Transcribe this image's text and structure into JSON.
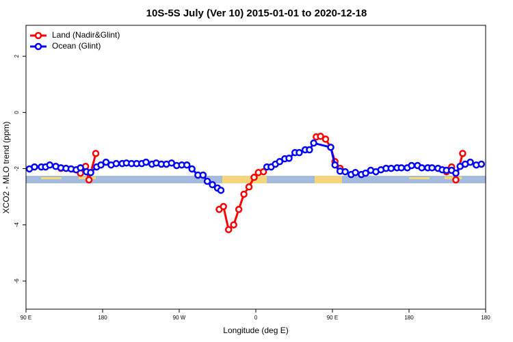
{
  "chart_data": {
    "type": "line",
    "title": "10S-5S July (Ver 10)   2015-01-01 to 2020-12-18",
    "x_label": "Longitude (deg E)",
    "y_label": "XCO2 - MLO trend (ppm)",
    "xlim": [
      90,
      630
    ],
    "ylim": [
      -7,
      3.1
    ],
    "xticks": [
      {
        "value": 90,
        "label": "90 E"
      },
      180,
      {
        "value": 270,
        "label": "90 W"
      },
      {
        "value": 360,
        "label": "0"
      },
      {
        "value": 450,
        "label": "90 E"
      },
      {
        "value": 540,
        "label": "180"
      },
      {
        "value": 630,
        "label": "180"
      }
    ],
    "yticks": [
      2,
      0,
      -2,
      -4,
      -6
    ],
    "legend": "top-left",
    "series": [
      {
        "name": "Land (Nadir&Glint)",
        "color": "#ff0000",
        "x": [
          131,
          154,
          160,
          164,
          172,
          null,
          317,
          322,
          328,
          334,
          340,
          346,
          352,
          358,
          363,
          369,
          null,
          431,
          436,
          442,
          448,
          453,
          459,
          null,
          562,
          584,
          590,
          595,
          603
        ],
        "values": [
          -1.99,
          -2.16,
          -1.92,
          -2.4,
          -1.46,
          null,
          -3.45,
          -3.35,
          -4.17,
          -4.0,
          -3.45,
          -2.91,
          -2.65,
          -2.31,
          -2.14,
          -2.11,
          null,
          -0.87,
          -0.85,
          -0.95,
          -1.24,
          -1.75,
          -1.99,
          null,
          -1.97,
          -2.11,
          -1.94,
          -2.4,
          -1.46
        ]
      },
      {
        "name": "Ocean (Glint)",
        "color": "#0000ff",
        "x": [
          94,
          100,
          108,
          113,
          118,
          125,
          131,
          137,
          143,
          149,
          154,
          161,
          166,
          173,
          178,
          184,
          190,
          196,
          203,
          208,
          214,
          220,
          226,
          231,
          238,
          243,
          249,
          255,
          261,
          267,
          273,
          279,
          285,
          292,
          298,
          303,
          309,
          315,
          319,
          null,
          373,
          378,
          383,
          388,
          394,
          399,
          406,
          411,
          418,
          423,
          428,
          448,
          453,
          459,
          465,
          472,
          477,
          484,
          489,
          495,
          501,
          507,
          513,
          519,
          526,
          531,
          538,
          543,
          550,
          555,
          562,
          567,
          574,
          579,
          584,
          590,
          595,
          600,
          606,
          612,
          619,
          625
        ],
        "values": [
          -2.01,
          -1.94,
          -1.94,
          -1.94,
          -1.87,
          -1.92,
          -1.97,
          -1.99,
          -2.01,
          -2.04,
          -1.97,
          -2.11,
          -2.14,
          -1.94,
          -1.87,
          -1.77,
          -1.87,
          -1.82,
          -1.82,
          -1.8,
          -1.82,
          -1.82,
          -1.82,
          -1.77,
          -1.84,
          -1.8,
          -1.84,
          -1.84,
          -1.8,
          -1.89,
          -1.87,
          -1.87,
          -2.01,
          -2.23,
          -2.23,
          -2.45,
          -2.57,
          -2.69,
          -2.77,
          null,
          -1.94,
          -1.94,
          -1.84,
          -1.75,
          -1.65,
          -1.63,
          -1.43,
          -1.43,
          -1.33,
          -1.33,
          -1.09,
          -1.24,
          -1.87,
          -2.09,
          -2.11,
          -2.21,
          -2.14,
          -2.21,
          -2.16,
          -2.06,
          -2.11,
          -2.04,
          -1.99,
          -1.99,
          -1.97,
          -1.97,
          -1.97,
          -1.89,
          -1.89,
          -1.97,
          -1.97,
          -1.97,
          -1.99,
          -2.04,
          -2.06,
          -2.06,
          -2.16,
          -1.92,
          -1.84,
          -1.77,
          -1.87,
          -1.84
        ]
      }
    ]
  }
}
